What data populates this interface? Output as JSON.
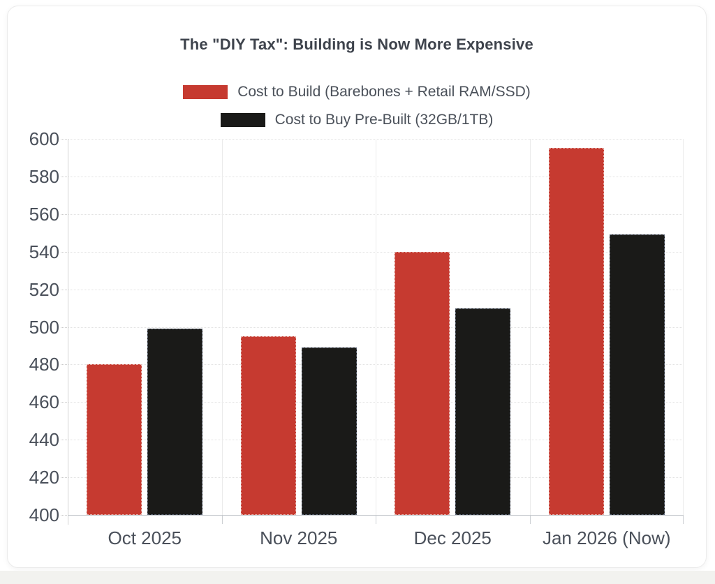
{
  "page": {
    "bottom_strip_color": "#f2f2ef",
    "card_background": "#ffffff",
    "card_border_color": "#ebebeb"
  },
  "chart_data": {
    "type": "bar",
    "title": "The \"DIY Tax\": Building is Now More Expensive",
    "categories": [
      "Oct 2025",
      "Nov 2025",
      "Dec 2025",
      "Jan 2026 (Now)"
    ],
    "series": [
      {
        "key": "build",
        "name": "Cost to Build (Barebones + Retail RAM/SSD)",
        "color": "#c63a30",
        "border_color": "#e3aca6",
        "values": [
          480,
          495,
          540,
          595
        ]
      },
      {
        "key": "prebuilt",
        "name": "Cost to Buy Pre-Built (32GB/1TB)",
        "color": "#1a1a18",
        "border_color": "#596170",
        "values": [
          499,
          489,
          510,
          549
        ]
      }
    ],
    "xlabel": "",
    "ylabel": "",
    "ylim": [
      400,
      600
    ],
    "ytick_step": 20,
    "yticks": [
      400,
      420,
      440,
      460,
      480,
      500,
      520,
      540,
      560,
      580,
      600
    ],
    "grid": true,
    "legend_position": "top",
    "text_color": "#4a505a",
    "title_color": "#3e434c",
    "gridline_color": "#e2e2e2"
  }
}
